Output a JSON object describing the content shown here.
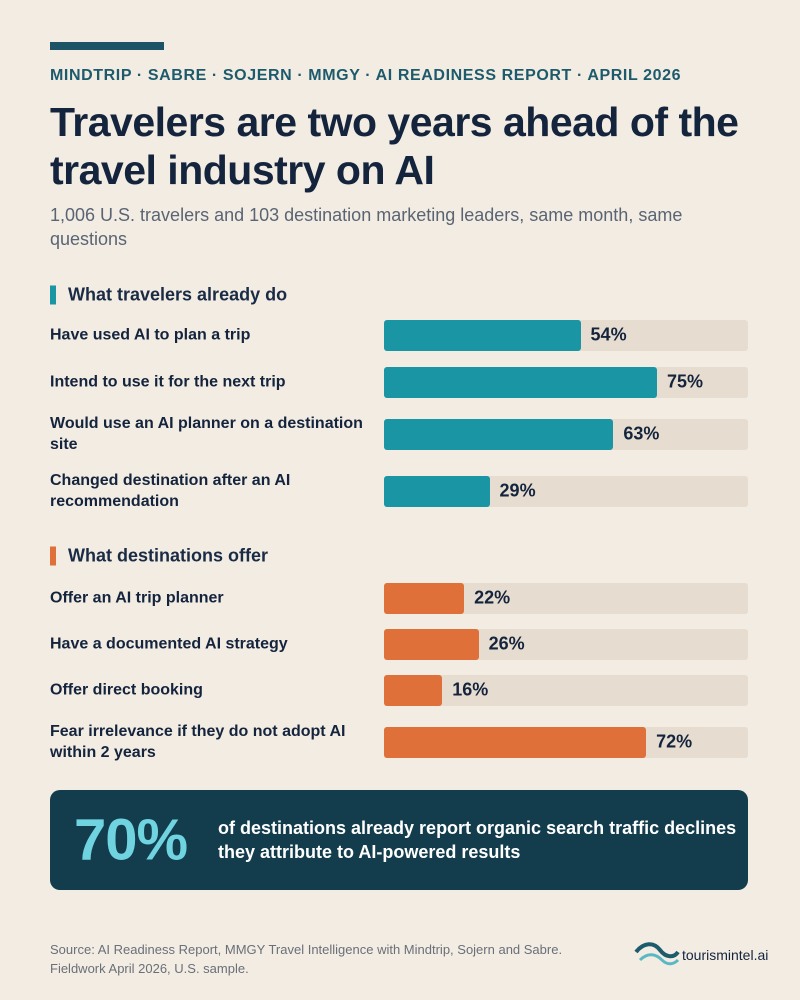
{
  "header": {
    "kicker": "MINDTRIP · SABRE · SOJERN · MMGY · AI READINESS REPORT · APRIL 2026",
    "title": "Travelers are two years ahead of the travel industry on AI",
    "subtitle": "1,006 U.S. travelers and 103 destination marketing leaders, same month, same questions"
  },
  "chart_data": [
    {
      "type": "bar",
      "orientation": "horizontal",
      "title": "What travelers already do",
      "categories": [
        "Have used AI to plan a trip",
        "Intend to use it for the next trip",
        "Would use an AI planner on a destination site",
        "Changed destination after an AI recommendation"
      ],
      "values": [
        54,
        75,
        63,
        29
      ],
      "value_labels": [
        "54%",
        "75%",
        "63%",
        "29%"
      ],
      "color": "#1a95a4",
      "xlim": [
        0,
        100
      ]
    },
    {
      "type": "bar",
      "orientation": "horizontal",
      "title": "What destinations offer",
      "categories": [
        "Offer an AI trip planner",
        "Have a documented AI strategy",
        "Offer direct booking",
        "Fear irrelevance if they do not adopt AI within 2 years"
      ],
      "values": [
        22,
        26,
        16,
        72
      ],
      "value_labels": [
        "22%",
        "26%",
        "16%",
        "72%"
      ],
      "color": "#e0703a",
      "xlim": [
        0,
        100
      ]
    }
  ],
  "callout": {
    "figure": "70%",
    "text": "of destinations already report organic search traffic declines they attribute to AI-powered results"
  },
  "footer": {
    "source": "Source: AI Readiness Report, MMGY Travel Intelligence with Mindtrip, Sojern and Sabre. Fieldwork April 2026, U.S. sample.",
    "brand": "tourismintel.ai"
  }
}
